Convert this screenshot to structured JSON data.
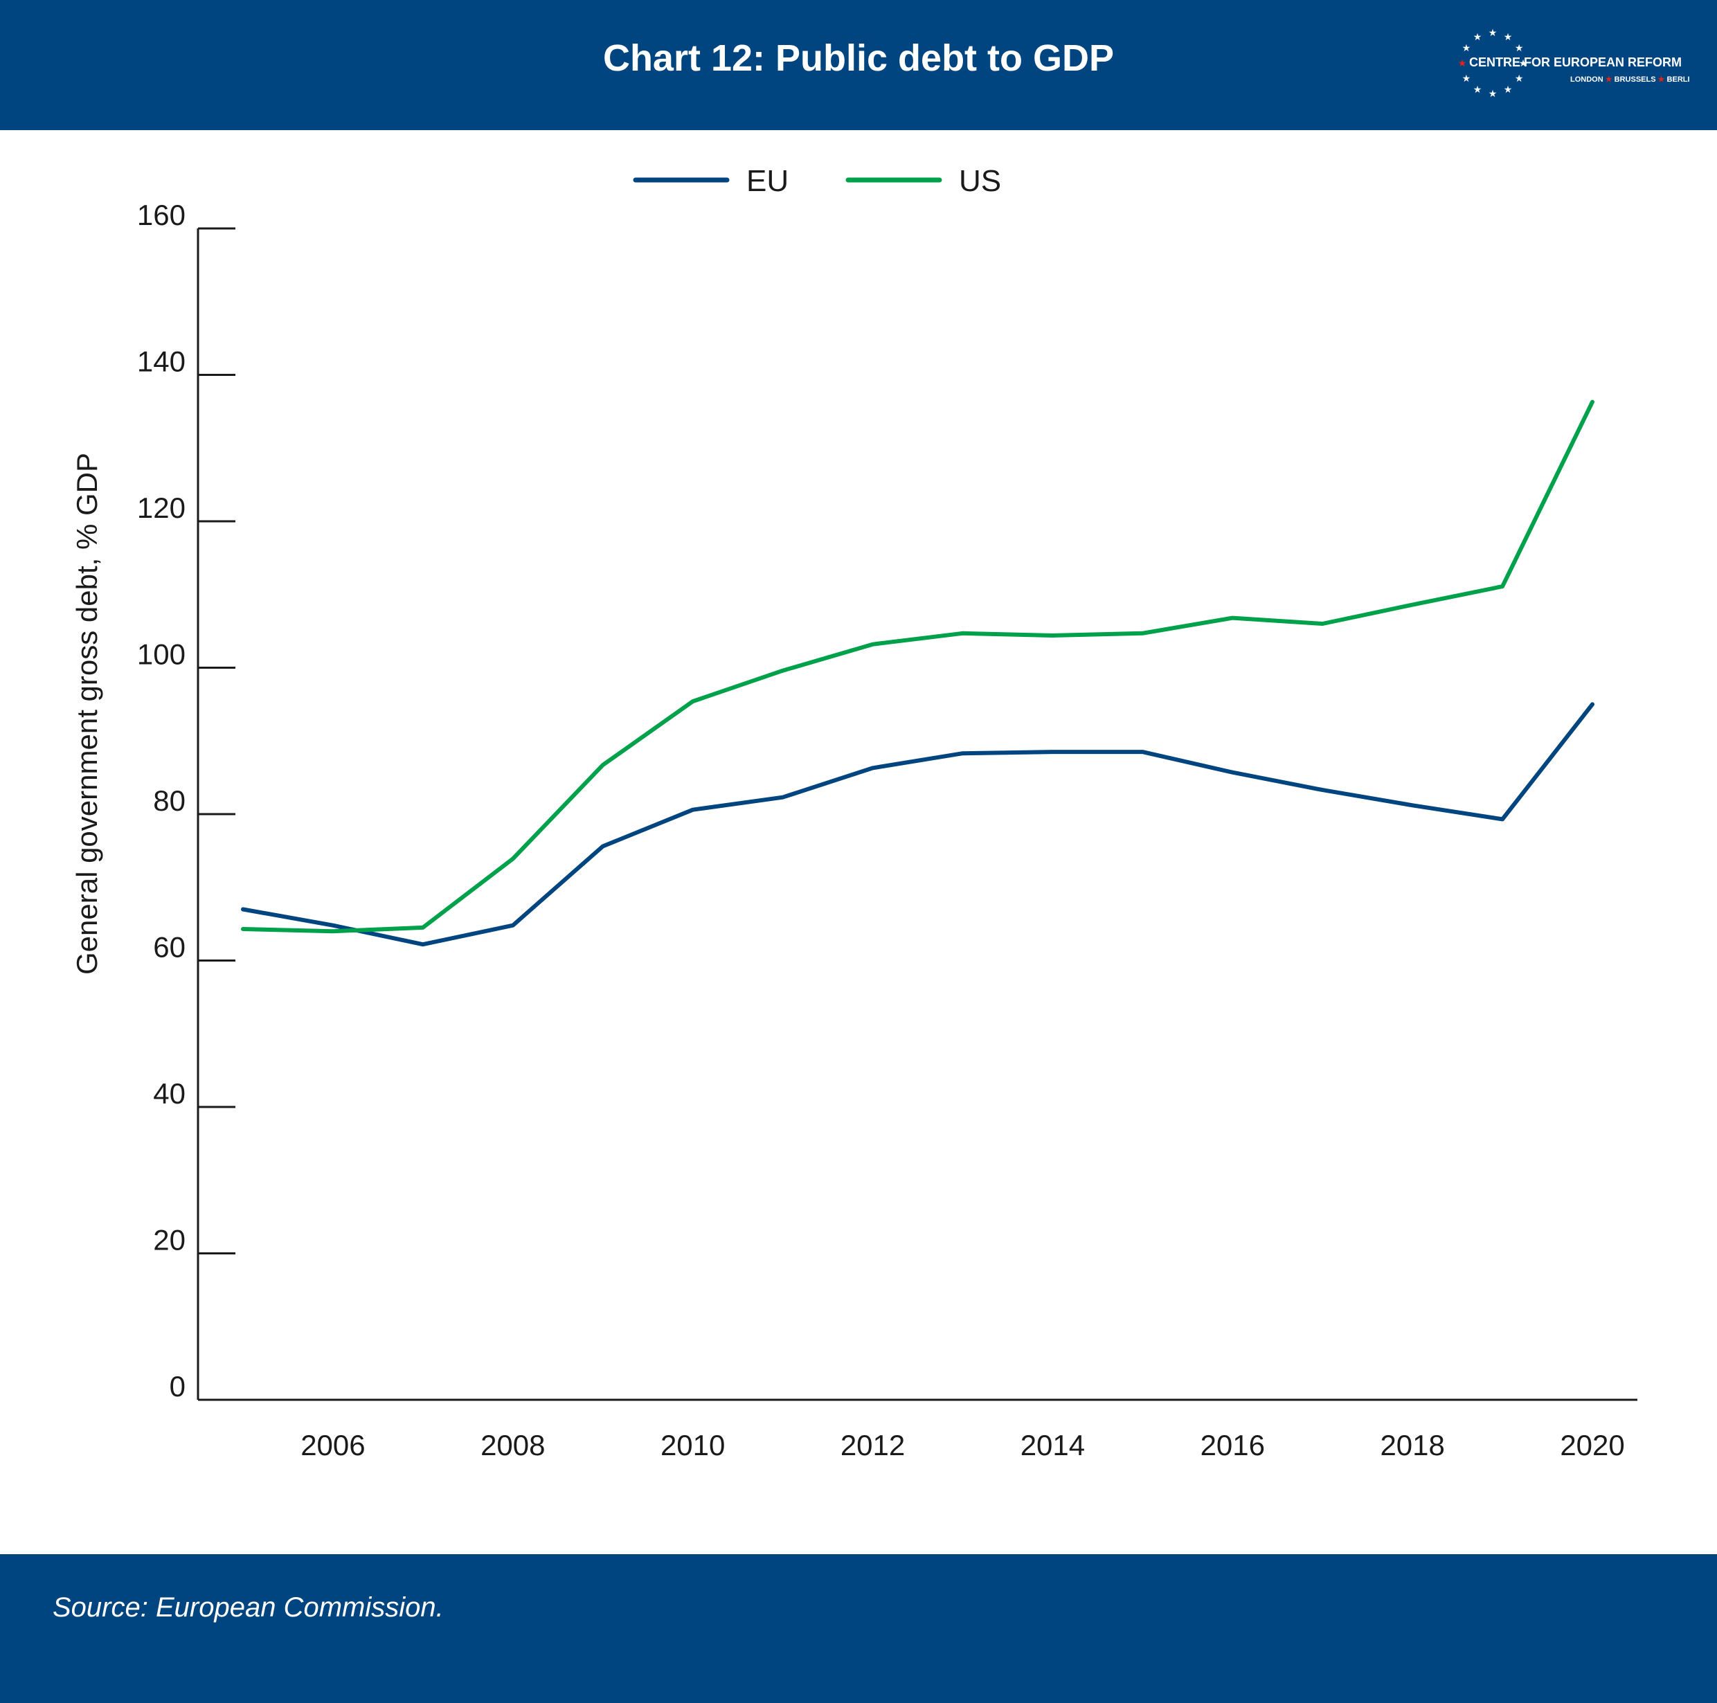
{
  "header": {
    "title": "Chart 12: Public debt to GDP",
    "logo_name": "CENTRE FOR EUROPEAN REFORM",
    "logo_cities": [
      "LONDON",
      "BRUSSELS",
      "BERLIN"
    ]
  },
  "footer": {
    "source": "Source: European Commission."
  },
  "colors": {
    "brand": "#00457f",
    "eu": "#00457f",
    "us": "#00a14b",
    "star_red": "#e32219"
  },
  "chart_data": {
    "type": "line",
    "xlabel": "",
    "ylabel": "General government gross debt, % GDP",
    "ylim": [
      0,
      160
    ],
    "yticks": [
      0,
      20,
      40,
      60,
      80,
      100,
      120,
      140,
      160
    ],
    "xlim": [
      2004.5,
      2020.5
    ],
    "xticks": [
      2006,
      2008,
      2010,
      2012,
      2014,
      2016,
      2018,
      2020
    ],
    "legend": "top-center",
    "grid": false,
    "x": [
      2005,
      2006,
      2007,
      2008,
      2009,
      2010,
      2011,
      2012,
      2013,
      2014,
      2015,
      2016,
      2017,
      2018,
      2019,
      2020
    ],
    "series": [
      {
        "name": "EU",
        "values": [
          67,
          64.8,
          62.2,
          64.8,
          75.6,
          80.6,
          82.3,
          86.3,
          88.3,
          88.5,
          88.5,
          85.7,
          83.3,
          81.2,
          79.3,
          95
        ]
      },
      {
        "name": "US",
        "values": [
          64.3,
          64,
          64.5,
          73.9,
          86.7,
          95.4,
          99.6,
          103.2,
          104.7,
          104.4,
          104.7,
          106.8,
          106,
          108.6,
          111.1,
          136.3
        ]
      }
    ]
  }
}
